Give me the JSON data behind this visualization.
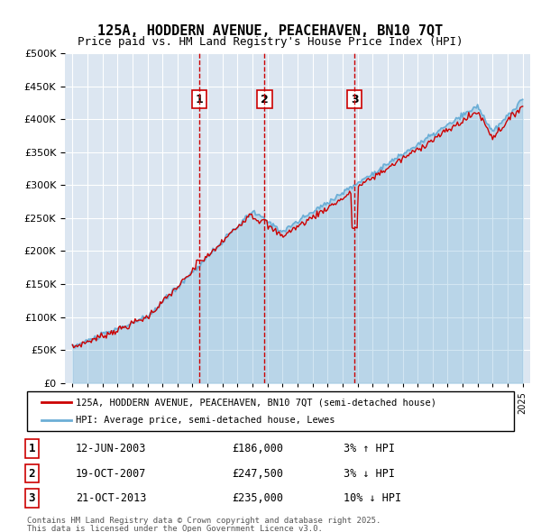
{
  "title": "125A, HODDERN AVENUE, PEACEHAVEN, BN10 7QT",
  "subtitle": "Price paid vs. HM Land Registry's House Price Index (HPI)",
  "legend_line1": "125A, HODDERN AVENUE, PEACEHAVEN, BN10 7QT (semi-detached house)",
  "legend_line2": "HPI: Average price, semi-detached house, Lewes",
  "transactions": [
    {
      "num": 1,
      "date": "12-JUN-2003",
      "price": 186000,
      "pct": "3%",
      "dir": "↑",
      "year": 2003.45
    },
    {
      "num": 2,
      "date": "19-OCT-2007",
      "price": 247500,
      "pct": "3%",
      "dir": "↓",
      "year": 2007.8
    },
    {
      "num": 3,
      "date": "21-OCT-2013",
      "price": 235000,
      "pct": "10%",
      "dir": "↓",
      "year": 2013.8
    }
  ],
  "footnote1": "Contains HM Land Registry data © Crown copyright and database right 2025.",
  "footnote2": "This data is licensed under the Open Government Licence v3.0.",
  "ylim": [
    0,
    500000
  ],
  "yticks": [
    0,
    50000,
    100000,
    150000,
    200000,
    250000,
    300000,
    350000,
    400000,
    450000,
    500000
  ],
  "bg_color": "#dce6f1",
  "plot_bg": "#dce6f1",
  "hpi_color": "#6baed6",
  "price_color": "#cc0000",
  "vline_color": "#cc0000",
  "grid_color": "#ffffff"
}
